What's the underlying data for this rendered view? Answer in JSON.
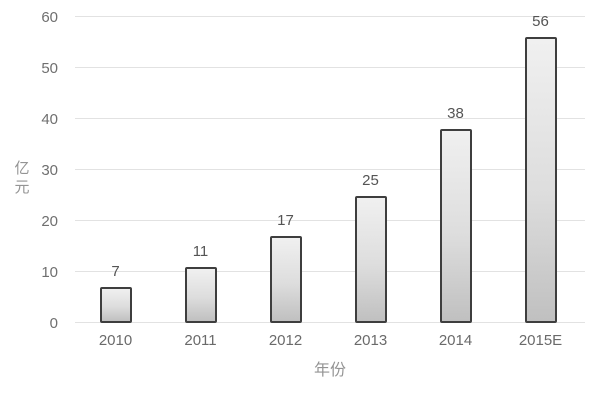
{
  "chart_data": {
    "type": "bar",
    "title": "",
    "categories": [
      "2010",
      "2011",
      "2012",
      "2013",
      "2014",
      "2015E"
    ],
    "values": [
      7,
      11,
      17,
      25,
      38,
      56
    ],
    "xlabel": "年份",
    "ylabel": "亿元",
    "ylim": [
      0,
      60
    ],
    "yticks": [
      0,
      10,
      20,
      30,
      40,
      50,
      60
    ],
    "grid": true,
    "legend": false,
    "value_labels_shown": true,
    "colors": {
      "background": "#ffffff",
      "gridline": "#e2e2e2",
      "tick_label": "#6f6f6f",
      "category_label": "#6a6a6a",
      "value_label": "#545454",
      "axis_title": "#949494",
      "bar_border": "#3e3e3e",
      "bar_fill_light": "#f0f0f0",
      "bar_fill_mid": "#dddddd",
      "bar_fill_dark": "#c0c0c0"
    }
  }
}
